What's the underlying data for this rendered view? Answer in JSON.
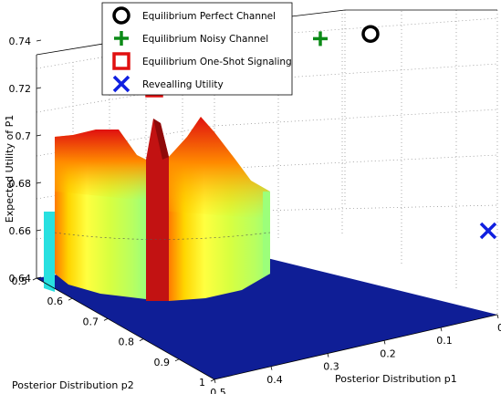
{
  "chart_data": {
    "type": "surface3d",
    "title": "",
    "xlabel": "Posterior Distribution p1",
    "ylabel": "Posterior Distribution p2",
    "zlabel": "Expected Utility of P1",
    "x_ticks": [
      "0.5",
      "0.4",
      "0.3",
      "0.2",
      "0.1",
      "0"
    ],
    "y_ticks": [
      "0.5",
      "0.6",
      "0.7",
      "0.8",
      "0.9",
      "1"
    ],
    "z_ticks": [
      "0.64",
      "0.66",
      "0.68",
      "0.7",
      "0.72",
      "0.74"
    ],
    "zlim": [
      0.64,
      0.75
    ],
    "grid": true,
    "legend_position": "top",
    "colormap": "jet",
    "floor_color": "#0f1e96",
    "series": [
      {
        "name": "Equilibrium Perfect Channel",
        "marker": "circle",
        "color": "#000000",
        "z": 0.743
      },
      {
        "name": "Equilibrium Noisy Channel",
        "marker": "plus",
        "color": "#0b8a17",
        "z": 0.741
      },
      {
        "name": "Equilibrium One-Shot Signaling",
        "marker": "square",
        "color": "#e01010",
        "z": 0.72
      },
      {
        "name": "Revealling Utility",
        "marker": "x",
        "color": "#1020e0",
        "z": 0.66
      }
    ]
  }
}
